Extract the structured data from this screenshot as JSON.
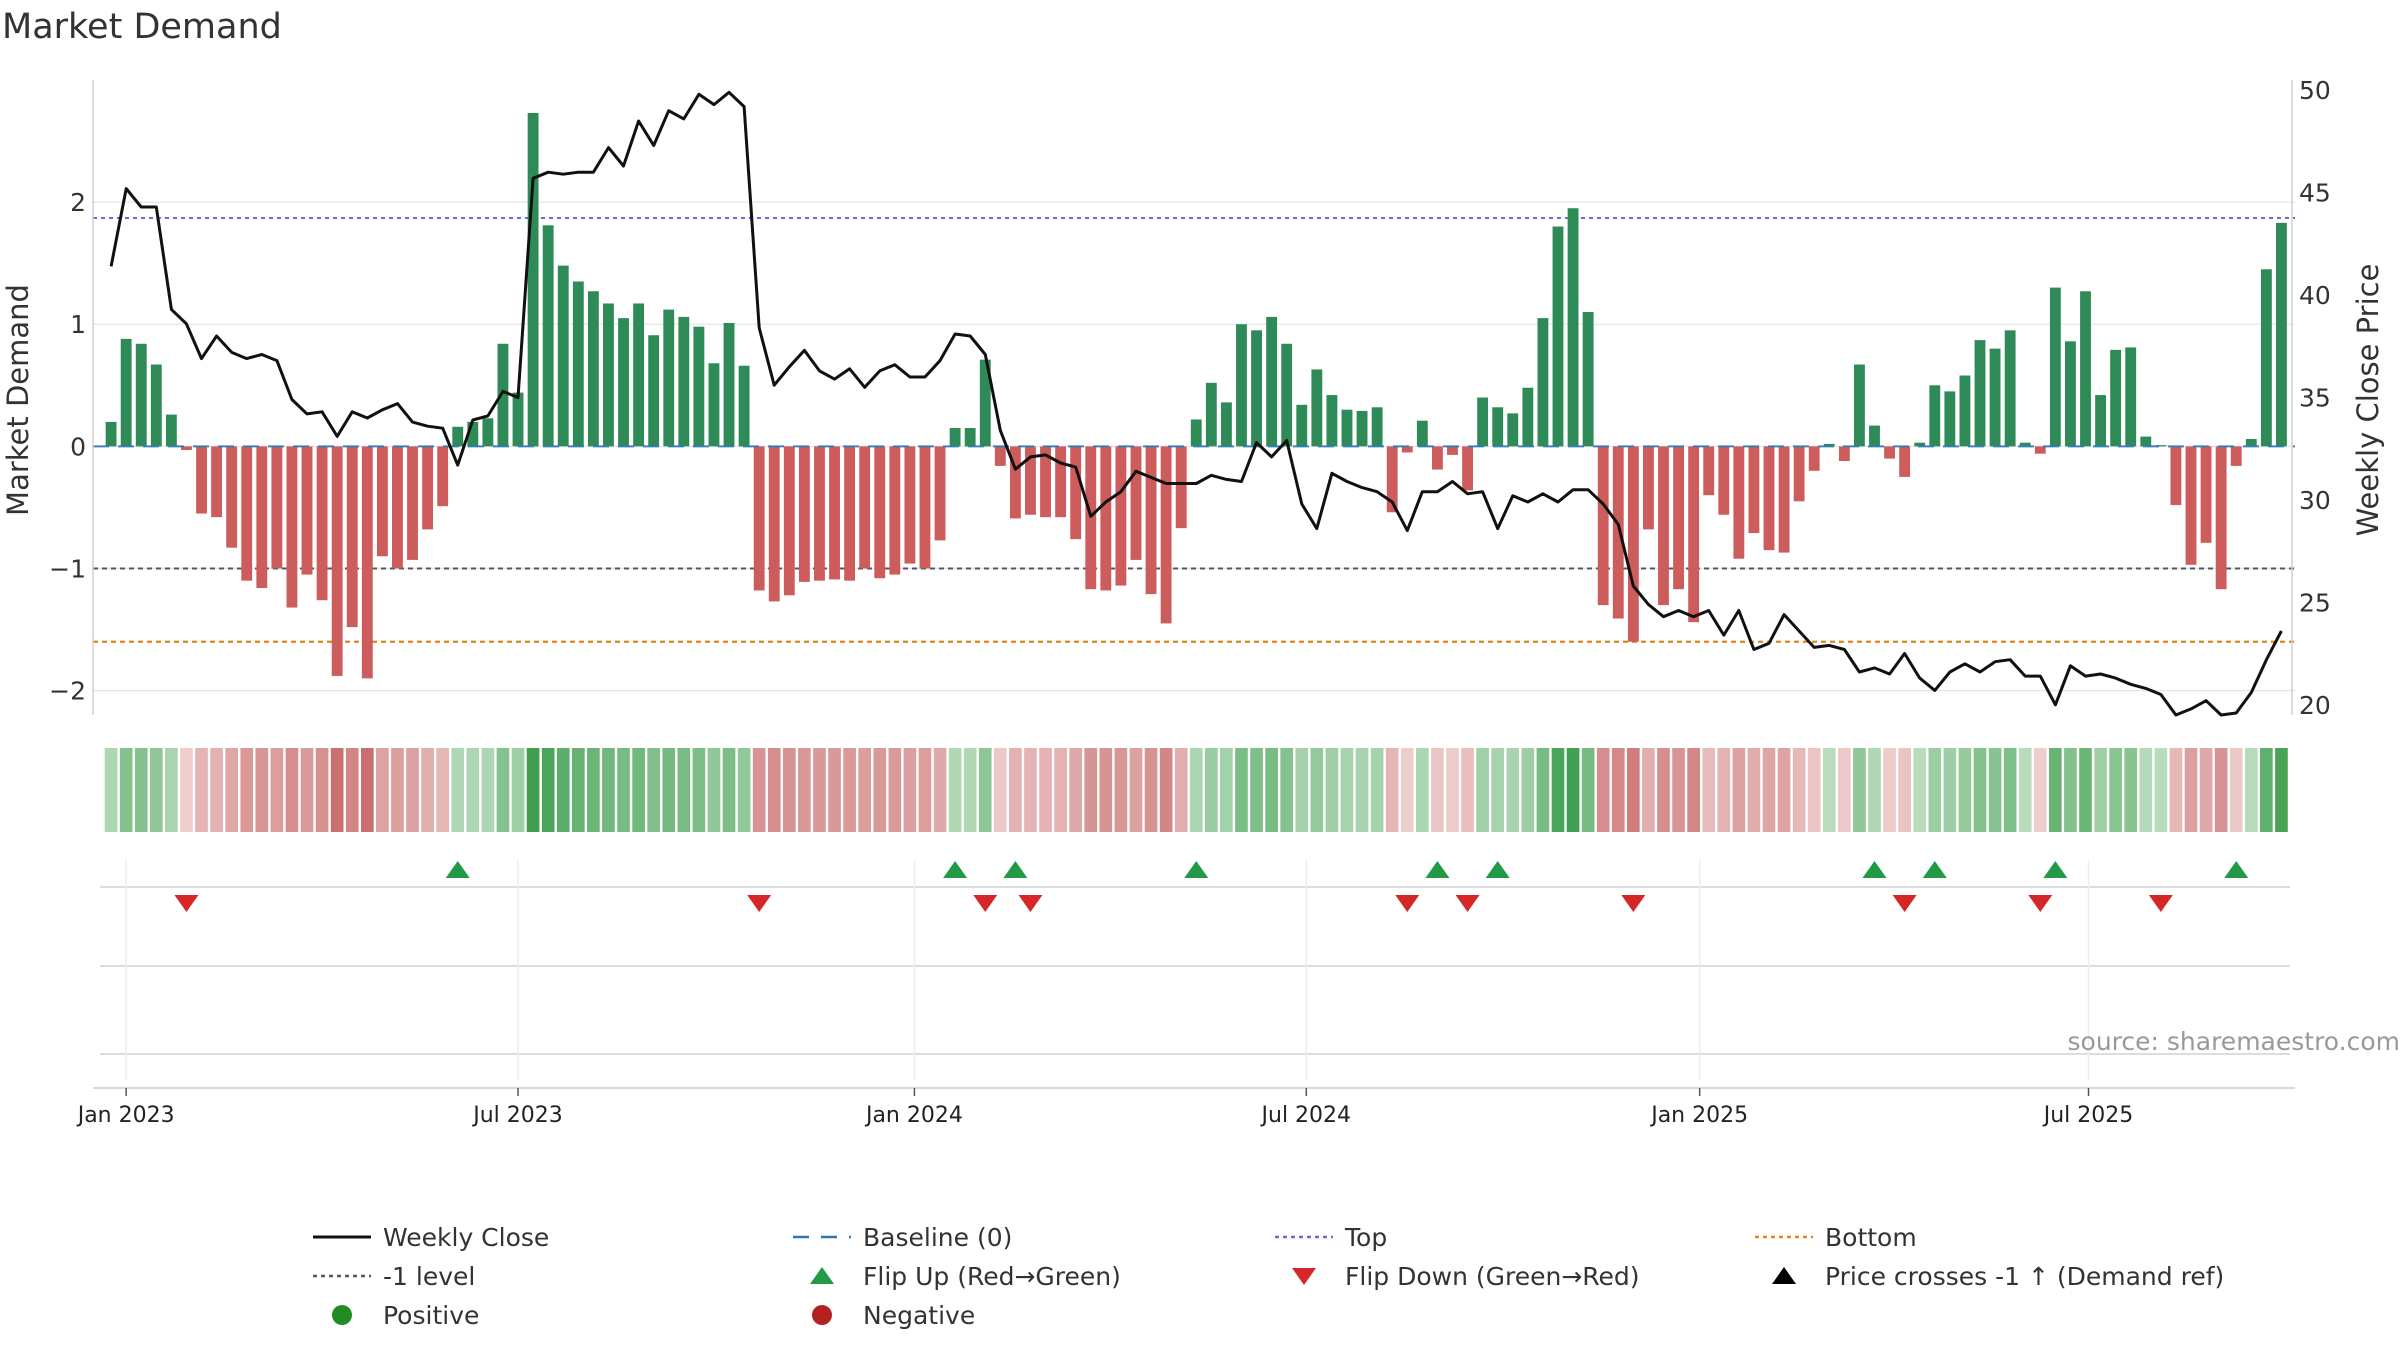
{
  "chart_data": {
    "type": "bar+line",
    "title": "Market Demand",
    "ylabel_left": "Market Demand",
    "ylabel_right": "Weekly Close Price",
    "ylim_left": [
      -2.2,
      3.0
    ],
    "ylim_right": [
      19.5,
      50.5
    ],
    "yticks_left": [
      -2,
      -1,
      0,
      1,
      2
    ],
    "ytick_labels_left": [
      "−2",
      "−1",
      "0",
      "1",
      "2"
    ],
    "yticks_right": [
      20,
      25,
      30,
      35,
      40,
      45,
      50
    ],
    "x_start": "2022-12-26",
    "x_step_days": 7,
    "xlim_weeks": [
      -1.2,
      144.9
    ],
    "xtick_weeks": [
      1,
      27,
      53.3,
      79.3,
      105.4,
      131.2
    ],
    "xtick_labels": [
      "Jan 2023",
      "Jul 2023",
      "Jan 2024",
      "Jul 2024",
      "Jan 2025",
      "Jul 2025"
    ],
    "reference_lines": {
      "top": 1.87,
      "bottom": -1.6,
      "minus_one": -1,
      "baseline": 0
    },
    "series": [
      {
        "name": "Market Demand",
        "kind": "bar",
        "values": [
          0.2,
          0.88,
          0.84,
          0.67,
          0.26,
          -0.03,
          -0.55,
          -0.58,
          -0.83,
          -1.1,
          -1.16,
          -1.0,
          -1.32,
          -1.05,
          -1.26,
          -1.88,
          -1.48,
          -1.9,
          -0.9,
          -1.0,
          -0.93,
          -0.68,
          -0.49,
          0.16,
          0.2,
          0.23,
          0.84,
          0.44,
          2.73,
          1.81,
          1.48,
          1.35,
          1.27,
          1.17,
          1.05,
          1.17,
          0.91,
          1.12,
          1.06,
          0.98,
          0.68,
          1.01,
          0.66,
          -1.18,
          -1.27,
          -1.22,
          -1.11,
          -1.1,
          -1.09,
          -1.1,
          -1.0,
          -1.08,
          -1.05,
          -0.96,
          -1.0,
          -0.77,
          0.15,
          0.15,
          0.71,
          -0.16,
          -0.59,
          -0.56,
          -0.58,
          -0.58,
          -0.76,
          -1.17,
          -1.18,
          -1.14,
          -0.93,
          -1.21,
          -1.45,
          -0.67,
          0.22,
          0.52,
          0.36,
          1.0,
          0.95,
          1.06,
          0.84,
          0.34,
          0.63,
          0.42,
          0.3,
          0.29,
          0.32,
          -0.54,
          -0.05,
          0.21,
          -0.19,
          -0.07,
          -0.36,
          0.4,
          0.32,
          0.27,
          0.48,
          1.05,
          1.8,
          1.95,
          1.1,
          -1.3,
          -1.41,
          -1.6,
          -0.68,
          -1.3,
          -1.17,
          -1.44,
          -0.4,
          -0.56,
          -0.92,
          -0.71,
          -0.85,
          -0.87,
          -0.45,
          -0.2,
          0.02,
          -0.12,
          0.67,
          0.17,
          -0.1,
          -0.25,
          0.03,
          0.5,
          0.45,
          0.58,
          0.87,
          0.8,
          0.95,
          0.03,
          -0.06,
          1.3,
          0.86,
          1.27,
          0.42,
          0.79,
          0.81,
          0.08,
          0.01,
          -0.48,
          -0.97,
          -0.79,
          -1.17,
          -0.16,
          0.06,
          1.45,
          1.83
        ]
      },
      {
        "name": "Weekly Close",
        "kind": "line",
        "values": [
          41.4,
          45.2,
          44.3,
          44.3,
          39.3,
          38.6,
          36.9,
          38.0,
          37.2,
          36.9,
          37.1,
          36.8,
          34.9,
          34.2,
          34.3,
          33.1,
          34.3,
          34.0,
          34.4,
          34.7,
          33.8,
          33.6,
          33.5,
          31.7,
          33.9,
          34.1,
          35.3,
          35.0,
          45.7,
          46.0,
          45.9,
          46.0,
          46.0,
          47.2,
          46.3,
          48.5,
          47.3,
          49.0,
          48.6,
          49.8,
          49.3,
          49.9,
          49.2,
          38.4,
          35.6,
          36.5,
          37.3,
          36.3,
          35.9,
          36.4,
          35.5,
          36.3,
          36.6,
          36.0,
          36.0,
          36.8,
          38.1,
          38.0,
          37.1,
          33.4,
          31.5,
          32.1,
          32.2,
          31.8,
          31.6,
          29.2,
          29.9,
          30.4,
          31.4,
          31.1,
          30.8,
          30.8,
          30.8,
          31.2,
          31.0,
          30.9,
          32.8,
          32.1,
          32.9,
          29.8,
          28.6,
          31.3,
          30.9,
          30.6,
          30.4,
          29.9,
          28.5,
          30.4,
          30.4,
          30.9,
          30.3,
          30.4,
          28.6,
          30.2,
          29.9,
          30.3,
          29.9,
          30.5,
          30.5,
          29.8,
          28.8,
          25.8,
          24.9,
          24.3,
          24.6,
          24.3,
          24.6,
          23.4,
          24.6,
          22.7,
          23.0,
          24.4,
          23.6,
          22.8,
          22.9,
          22.7,
          21.6,
          21.8,
          21.5,
          22.5,
          21.3,
          20.7,
          21.6,
          22.0,
          21.6,
          22.1,
          22.2,
          21.4,
          21.4,
          20.0,
          21.9,
          21.4,
          21.5,
          21.3,
          21.0,
          20.8,
          20.5,
          19.5,
          19.8,
          20.2,
          19.5,
          19.6,
          20.6,
          22.2,
          23.6
        ]
      }
    ],
    "flip_up_weeks": [
      23,
      56,
      60,
      72,
      88,
      92,
      117,
      121,
      129,
      141
    ],
    "flip_down_weeks": [
      5,
      43,
      58,
      61,
      86,
      90,
      101,
      119,
      128,
      136
    ],
    "heat_strip_label": "",
    "watermark": "source: sharemaestro.com",
    "legend": [
      {
        "label": "Weekly Close",
        "kind": "solid-line",
        "color": "#111111"
      },
      {
        "label": "Baseline (0)",
        "kind": "dashed-line",
        "color": "#2a78b5"
      },
      {
        "label": "Top",
        "kind": "dotted-line",
        "color": "#6b6bd6"
      },
      {
        "label": "Bottom",
        "kind": "dotted-line",
        "color": "#e0851c"
      },
      {
        "label": "-1 level",
        "kind": "dotted-line",
        "color": "#555566"
      },
      {
        "label": "Flip Up (Red→Green)",
        "kind": "triangle-up",
        "color": "#229944"
      },
      {
        "label": "Flip Down (Green→Red)",
        "kind": "triangle-down",
        "color": "#d62728"
      },
      {
        "label": "Price crosses -1 ↑ (Demand ref)",
        "kind": "triangle-up",
        "color": "#000000"
      },
      {
        "label": "Positive",
        "kind": "dot",
        "color": "#228b22"
      },
      {
        "label": "Negative",
        "kind": "dot",
        "color": "#b22222"
      }
    ],
    "colors": {
      "positive_bar": "#2e8b57",
      "negative_bar": "#cd5c5c",
      "price_line": "#111111",
      "grid": "#e6e6e6"
    }
  }
}
